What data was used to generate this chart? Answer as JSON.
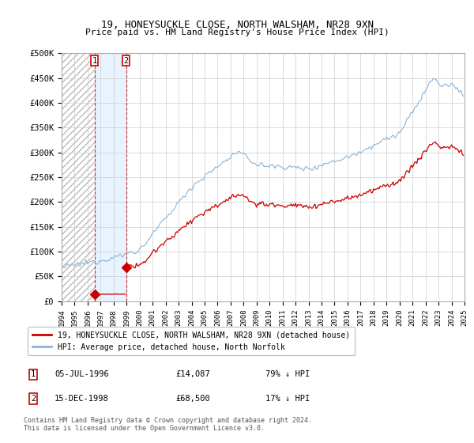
{
  "title": "19, HONEYSUCKLE CLOSE, NORTH WALSHAM, NR28 9XN",
  "subtitle": "Price paid vs. HM Land Registry's House Price Index (HPI)",
  "legend_line1": "19, HONEYSUCKLE CLOSE, NORTH WALSHAM, NR28 9XN (detached house)",
  "legend_line2": "HPI: Average price, detached house, North Norfolk",
  "sale1_label": "1",
  "sale1_date": "05-JUL-1996",
  "sale1_price": "£14,087",
  "sale1_hpi": "79% ↓ HPI",
  "sale1_year": 1996.54,
  "sale1_value": 14087,
  "sale2_label": "2",
  "sale2_date": "15-DEC-1998",
  "sale2_price": "£68,500",
  "sale2_hpi": "17% ↓ HPI",
  "sale2_year": 1998.96,
  "sale2_value": 68500,
  "hpi_color": "#8ab4d8",
  "price_color": "#cc0000",
  "marker_color": "#cc0000",
  "ylim": [
    0,
    500000
  ],
  "xlim_start": 1994,
  "xlim_end": 2025,
  "copyright_text": "Contains HM Land Registry data © Crown copyright and database right 2024.\nThis data is licensed under the Open Government Licence v3.0.",
  "yticks": [
    0,
    50000,
    100000,
    150000,
    200000,
    250000,
    300000,
    350000,
    400000,
    450000,
    500000
  ],
  "ytick_labels": [
    "£0",
    "£50K",
    "£100K",
    "£150K",
    "£200K",
    "£250K",
    "£300K",
    "£350K",
    "£400K",
    "£450K",
    "£500K"
  ],
  "xticks": [
    1994,
    1995,
    1996,
    1997,
    1998,
    1999,
    2000,
    2001,
    2002,
    2003,
    2004,
    2005,
    2006,
    2007,
    2008,
    2009,
    2010,
    2011,
    2012,
    2013,
    2014,
    2015,
    2016,
    2017,
    2018,
    2019,
    2020,
    2021,
    2022,
    2023,
    2024,
    2025
  ]
}
